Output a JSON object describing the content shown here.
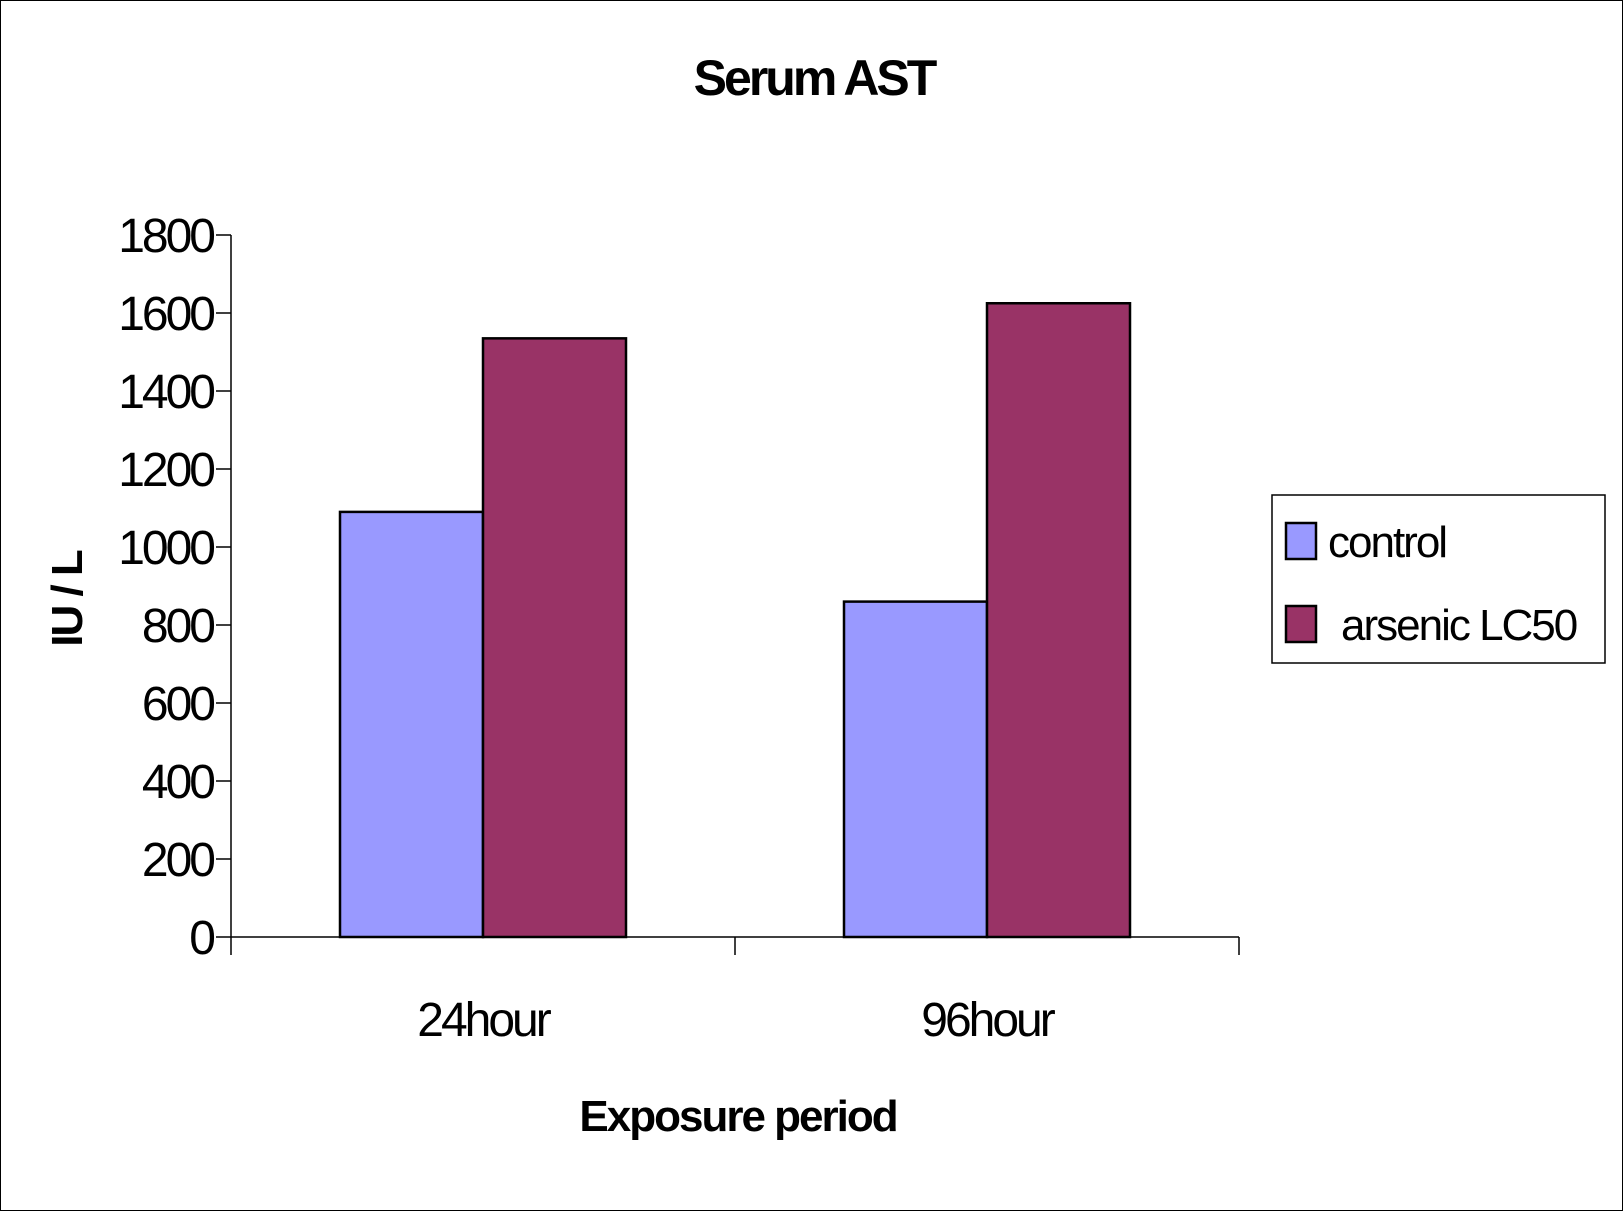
{
  "chart_data": {
    "type": "bar",
    "title": "Serum AST",
    "xlabel": "Exposure period",
    "ylabel": "IU / L",
    "categories": [
      "24hour",
      "96hour"
    ],
    "series": [
      {
        "name": "control",
        "values": [
          1090,
          860
        ],
        "color": "#9999ff"
      },
      {
        "name": "arsenic LC50",
        "values": [
          1535,
          1625
        ],
        "color": "#993366"
      }
    ],
    "ylim": [
      0,
      1800
    ],
    "yticks": [
      "0",
      "200",
      "400",
      "600",
      "800",
      "1000",
      "1200",
      "1400",
      "1600",
      "1800"
    ],
    "grid": false,
    "legend_position": "right"
  }
}
